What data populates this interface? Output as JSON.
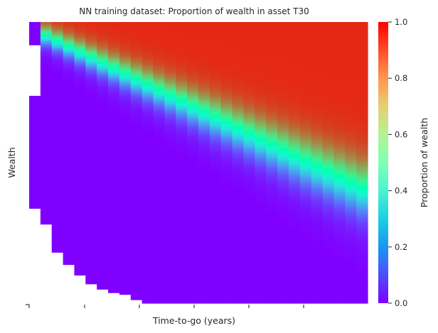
{
  "chart_data": {
    "type": "heatmap",
    "title": "NN training dataset: Proportion of wealth in asset T30",
    "xlabel": "Time-to-go (years)",
    "ylabel": "Wealth",
    "colorbar": {
      "label": "Proportion of wealth",
      "colormap": "rainbow",
      "range": [
        0.0,
        1.0
      ],
      "ticks": [
        "0.0",
        "0.2",
        "0.4",
        "0.6",
        "0.8",
        "1.0"
      ]
    },
    "x_tick_labels": [],
    "y_tick_labels": [],
    "columns": 30,
    "rows": 160,
    "value_range": [
      0.0,
      0.95
    ],
    "description_of_surface": "proportion rises from 0 at low wealth to about 0.95 at high wealth; the transition band moves to lower wealth as time-to-go increases; bottom-left region has no data"
  }
}
